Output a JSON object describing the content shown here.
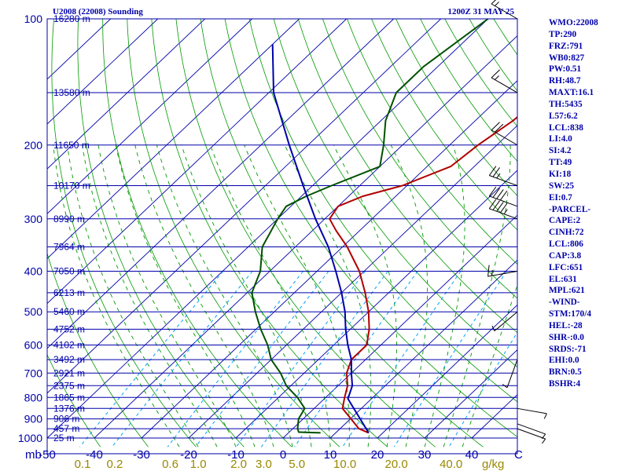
{
  "header": {
    "title": "U2008 (22008) Sounding",
    "valid_time": "1200Z 31 MAY 25"
  },
  "indices": [
    "WMO:22008",
    "TP:290",
    "FRZ:791",
    "WB0:827",
    "PW:0.51",
    "RH:48.7",
    "MAXT:16.1",
    "TH:5435",
    "L57:6.2",
    "LCL:838",
    "LI:4.0",
    "SI:4.2",
    "TT:49",
    "KI:18",
    "SW:25",
    "EI:0.7",
    "-PARCEL-",
    "CAPE:2",
    "CINH:72",
    "LCL:806",
    "CAP:3.8",
    "LFC:651",
    "EL:631",
    "MPL:621",
    "-WIND-",
    "STM:170/4",
    "HEL:-28",
    "SHR-:0.0",
    "SRDS:-71",
    "EHI:0.0",
    "BRN:0.5",
    "BSHR:4"
  ],
  "chart_data": {
    "type": "line",
    "title": "U2008 (22008) Sounding 1200Z 31 MAY 25",
    "y_axis": {
      "label": "mb",
      "scale": "log-pressure",
      "ylim": [
        1000,
        100
      ],
      "ticks": [
        100,
        200,
        300,
        400,
        500,
        600,
        700,
        800,
        900,
        1000
      ]
    },
    "x_axis": {
      "label": "C",
      "xlim": [
        -50,
        50
      ],
      "ticks": [
        -50,
        -40,
        -30,
        -20,
        -10,
        0,
        10,
        20,
        30,
        40
      ],
      "skewed": true
    },
    "mixing_ratio_labels": {
      "unit": "g/kg",
      "values": [
        "0.1",
        "0.2",
        "0.6",
        "1.0",
        "2.0",
        "3.0",
        "5.0",
        "10.0",
        "20.0",
        "40.0"
      ]
    },
    "height_labels": [
      {
        "p": 100,
        "label": "16280 m"
      },
      {
        "p": 150,
        "label": "13580 m"
      },
      {
        "p": 200,
        "label": "11650 m"
      },
      {
        "p": 250,
        "label": "10170 m"
      },
      {
        "p": 300,
        "label": "8990 m"
      },
      {
        "p": 350,
        "label": "7964 m"
      },
      {
        "p": 400,
        "label": "7050 m"
      },
      {
        "p": 450,
        "label": "6213 m"
      },
      {
        "p": 500,
        "label": "5460 m"
      },
      {
        "p": 550,
        "label": "4752 m"
      },
      {
        "p": 600,
        "label": "4102 m"
      },
      {
        "p": 650,
        "label": "3492 m"
      },
      {
        "p": 700,
        "label": "2921 m"
      },
      {
        "p": 750,
        "label": "2375 m"
      },
      {
        "p": 800,
        "label": "1865 m"
      },
      {
        "p": 850,
        "label": "1376 m"
      },
      {
        "p": 900,
        "label": "906 m"
      },
      {
        "p": 950,
        "label": "457 m"
      },
      {
        "p": 1000,
        "label": "25 m"
      }
    ],
    "series": [
      {
        "key": "temperature",
        "color": "#b00000",
        "points": [
          [
            972,
            17
          ],
          [
            950,
            14
          ],
          [
            850,
            6
          ],
          [
            800,
            4
          ],
          [
            750,
            2
          ],
          [
            700,
            -1
          ],
          [
            650,
            -3
          ],
          [
            600,
            -3
          ],
          [
            550,
            -6
          ],
          [
            500,
            -10
          ],
          [
            450,
            -15
          ],
          [
            400,
            -21
          ],
          [
            350,
            -29
          ],
          [
            320,
            -35
          ],
          [
            300,
            -39
          ],
          [
            280,
            -40
          ],
          [
            265,
            -37
          ],
          [
            250,
            -31
          ],
          [
            225,
            -25
          ],
          [
            200,
            -24
          ],
          [
            175,
            -22
          ],
          [
            150,
            -21
          ],
          [
            130,
            -25
          ],
          [
            100,
            -29
          ]
        ]
      },
      {
        "key": "dewpoint",
        "color": "#005000",
        "points": [
          [
            972,
            6.8
          ],
          [
            968,
            2
          ],
          [
            950,
            1
          ],
          [
            900,
            -1
          ],
          [
            850,
            -2
          ],
          [
            800,
            -6
          ],
          [
            750,
            -11
          ],
          [
            700,
            -15
          ],
          [
            650,
            -20
          ],
          [
            600,
            -24
          ],
          [
            550,
            -29
          ],
          [
            500,
            -34
          ],
          [
            450,
            -39
          ],
          [
            400,
            -42
          ],
          [
            350,
            -47
          ],
          [
            300,
            -50
          ],
          [
            280,
            -51
          ],
          [
            265,
            -49
          ],
          [
            250,
            -46
          ],
          [
            225,
            -40
          ],
          [
            200,
            -44
          ],
          [
            175,
            -49
          ],
          [
            150,
            -53
          ],
          [
            130,
            -53
          ],
          [
            100,
            -50
          ]
        ]
      },
      {
        "key": "parcel",
        "color": "#0000aa",
        "points": [
          [
            972,
            17
          ],
          [
            806,
            5
          ],
          [
            750,
            3
          ],
          [
            700,
            0
          ],
          [
            650,
            -3
          ],
          [
            600,
            -7
          ],
          [
            550,
            -11
          ],
          [
            500,
            -15
          ],
          [
            450,
            -20
          ],
          [
            400,
            -26
          ],
          [
            350,
            -33
          ],
          [
            300,
            -42
          ],
          [
            250,
            -52
          ],
          [
            200,
            -64
          ],
          [
            150,
            -79
          ],
          [
            115,
            -90
          ]
        ]
      }
    ],
    "wind_barbs": [
      {
        "p": 100,
        "dir": 300,
        "spd": 15
      },
      {
        "p": 150,
        "dir": 300,
        "spd": 15
      },
      {
        "p": 200,
        "dir": 300,
        "spd": 20
      },
      {
        "p": 250,
        "dir": 290,
        "spd": 25
      },
      {
        "p": 280,
        "dir": 290,
        "spd": 40
      },
      {
        "p": 300,
        "dir": 290,
        "spd": 45
      },
      {
        "p": 400,
        "dir": 260,
        "spd": 15
      },
      {
        "p": 500,
        "dir": 230,
        "spd": 5
      },
      {
        "p": 650,
        "dir": 200,
        "spd": 5
      },
      {
        "p": 850,
        "dir": 100,
        "spd": 5
      },
      {
        "p": 925,
        "dir": 110,
        "spd": 5
      },
      {
        "p": 950,
        "dir": 110,
        "spd": 5
      }
    ],
    "colors": {
      "isobar": "#0000aa",
      "isotherm": "#0000aa",
      "dry_adiabat": "#009900",
      "moist_adiabat": "#009900",
      "mixing_ratio": "#00a0ff",
      "frame": "#000000"
    },
    "grid": true
  }
}
